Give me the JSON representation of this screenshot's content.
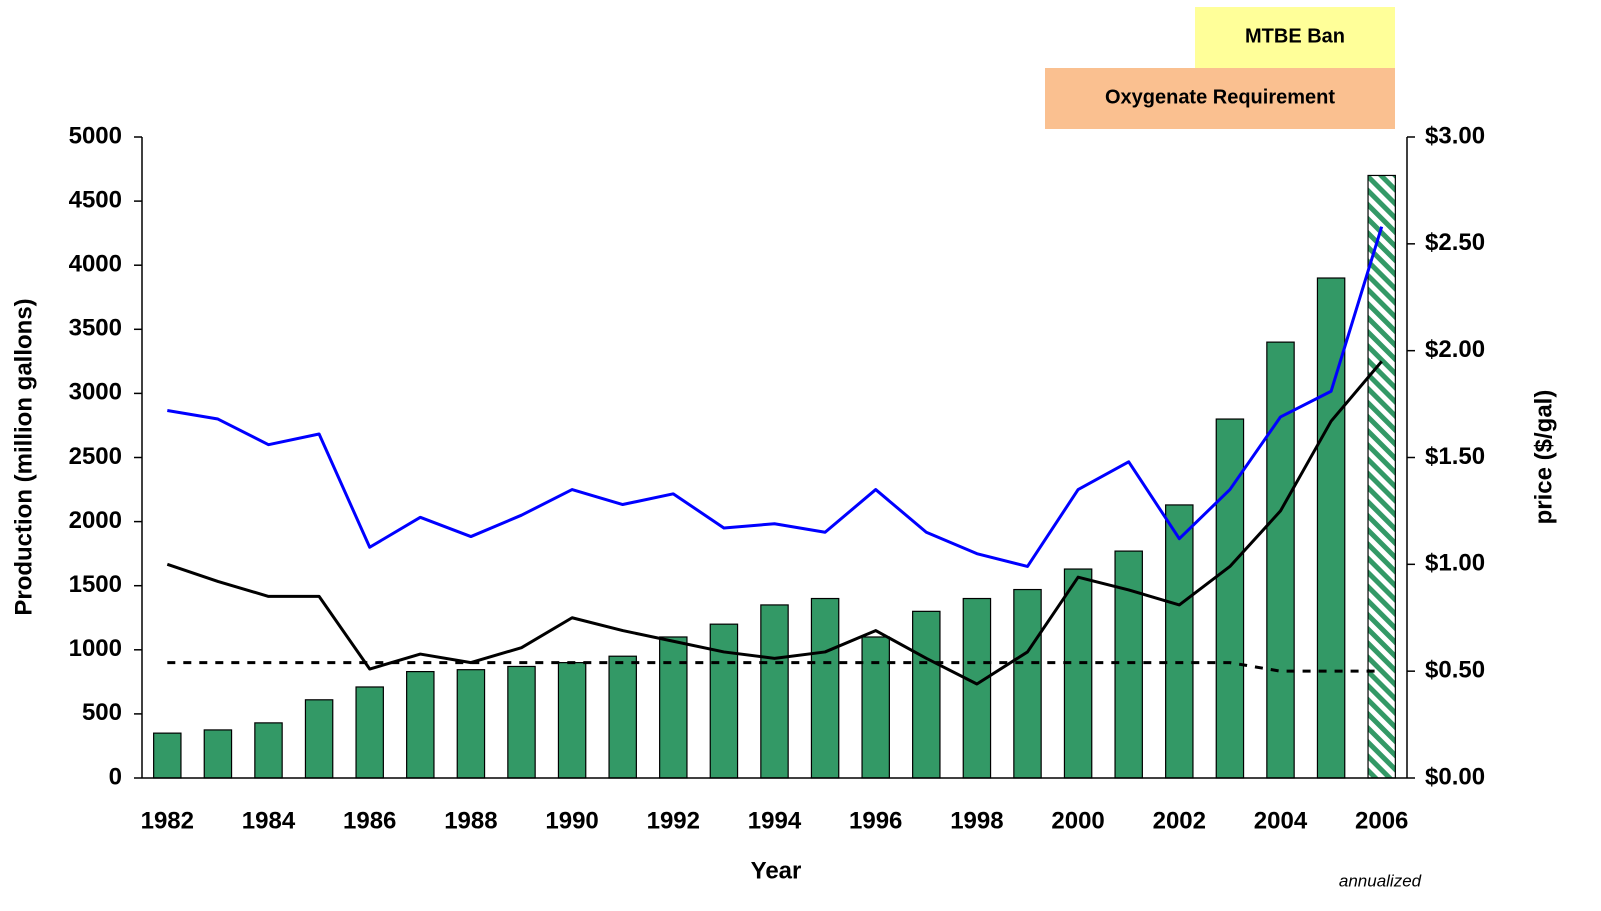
{
  "chart_data": {
    "type": "bar",
    "x_label": "Year",
    "y_label": "Production (million gallons)",
    "y2_label": "price ($/gal)",
    "annotations": [
      "MTBE Ban",
      "Oxygenate Requirement",
      "annualized"
    ],
    "categories": [
      "1982",
      null,
      "1984",
      null,
      "1986",
      null,
      "1988",
      null,
      "1990",
      null,
      "1992",
      null,
      "1994",
      null,
      "1996",
      null,
      "1998",
      null,
      "2000",
      null,
      "2002",
      null,
      "2004",
      null,
      "2006"
    ],
    "ylim": [
      0,
      5000
    ],
    "yticks": [
      0,
      500,
      1000,
      1500,
      2000,
      2500,
      3000,
      3500,
      4000,
      4500,
      5000
    ],
    "y2lim": [
      0,
      3
    ],
    "y2ticks": [
      {
        "value": 0,
        "label": "$0.00"
      },
      {
        "value": 0.5,
        "label": "$0.50"
      },
      {
        "value": 1,
        "label": "$1.00"
      },
      {
        "value": 1.5,
        "label": "$1.50"
      },
      {
        "value": 2,
        "label": "$2.00"
      },
      {
        "value": 2.5,
        "label": "$2.50"
      },
      {
        "value": 3,
        "label": "$3.00"
      }
    ],
    "series": [
      {
        "type": "bar",
        "color": "#339966",
        "values": [
          350,
          375,
          430,
          610,
          710,
          830,
          845,
          870,
          900,
          950,
          1100,
          1200,
          1350,
          1400,
          1100,
          1300,
          1400,
          1470,
          1630,
          1770,
          2130,
          2800,
          3400,
          3900,
          4700
        ]
      },
      {
        "type": "line",
        "axis": "y2",
        "color": "#0000ff",
        "values": [
          1.72,
          1.68,
          1.56,
          1.61,
          1.08,
          1.22,
          1.13,
          1.23,
          1.35,
          1.28,
          1.33,
          1.17,
          1.19,
          1.15,
          1.35,
          1.15,
          1.05,
          0.99,
          1.35,
          1.48,
          1.12,
          1.35,
          1.69,
          1.81,
          2.58
        ]
      },
      {
        "type": "line",
        "axis": "y2",
        "color": "#000000",
        "values": [
          1.0,
          0.92,
          0.85,
          0.85,
          0.51,
          0.58,
          0.54,
          0.61,
          0.75,
          0.69,
          0.64,
          0.59,
          0.56,
          0.59,
          0.69,
          0.56,
          0.44,
          0.59,
          0.94,
          0.88,
          0.81,
          0.99,
          1.25,
          1.67,
          1.95
        ]
      },
      {
        "type": "line",
        "axis": "y2",
        "color": "#000000",
        "line_style": "dashed",
        "values": [
          0.54,
          0.54,
          0.54,
          0.54,
          0.54,
          0.54,
          0.54,
          0.54,
          0.54,
          0.54,
          0.54,
          0.54,
          0.54,
          0.54,
          0.54,
          0.54,
          0.54,
          0.54,
          0.54,
          0.54,
          0.54,
          0.54,
          0.5,
          0.5,
          0.5
        ]
      }
    ]
  }
}
